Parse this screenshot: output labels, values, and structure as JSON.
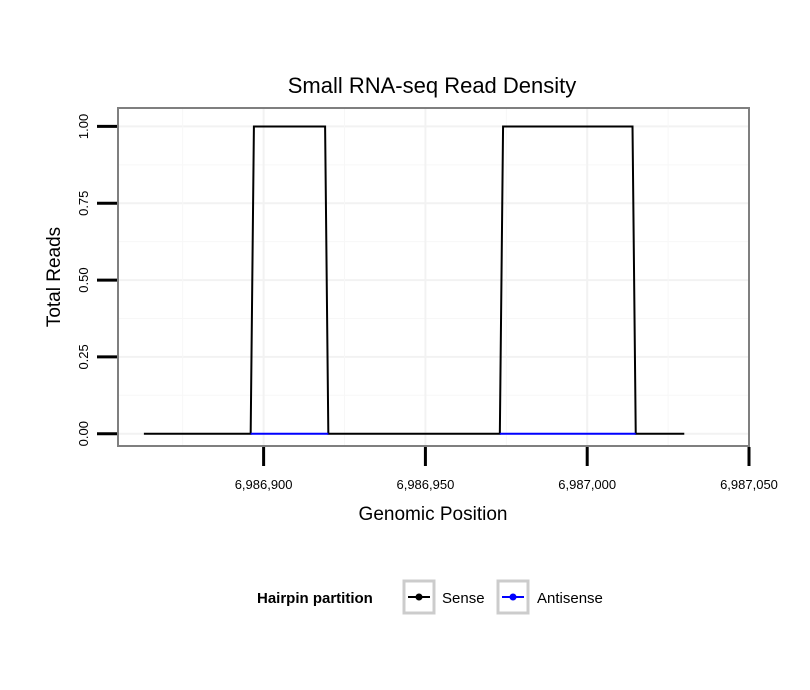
{
  "chart_data": {
    "type": "line",
    "title": "Small RNA-seq Read Density",
    "xlabel": "Genomic Position",
    "ylabel": "Total Reads",
    "xlim": [
      6986855,
      6987050
    ],
    "ylim": [
      -0.04,
      1.06
    ],
    "x_ticks": [
      6986900,
      6986950,
      6987000,
      6987050
    ],
    "x_tick_labels": [
      "6,986,900",
      "6,986,950",
      "6,987,000",
      "6,987,050"
    ],
    "y_ticks": [
      0,
      0.25,
      0.5,
      0.75,
      1.0
    ],
    "y_tick_labels": [
      "0.00",
      "0.25",
      "0.50",
      "0.75",
      "1.00"
    ],
    "grid": true,
    "legend": {
      "title": "Hairpin partition",
      "position": "bottom"
    },
    "series": [
      {
        "name": "Sense",
        "color": "#000000",
        "x": [
          6986863,
          6986896,
          6986897,
          6986919,
          6986920,
          6986973,
          6986974,
          6987014,
          6987015,
          6987030
        ],
        "y": [
          0,
          0,
          1,
          1,
          0,
          0,
          1,
          1,
          0,
          0
        ]
      },
      {
        "name": "Antisense",
        "color": "#0000ff",
        "x": [
          6986896,
          6986920,
          6986973,
          6987015
        ],
        "y": [
          0,
          0,
          0,
          0
        ],
        "segments": [
          [
            0,
            1
          ],
          [
            2,
            3
          ]
        ]
      }
    ]
  }
}
